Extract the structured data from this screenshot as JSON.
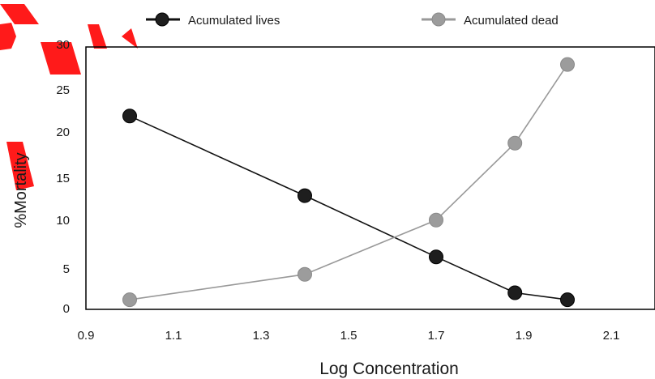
{
  "chart_data": {
    "type": "line",
    "title": "",
    "xlabel": "Log Concentration",
    "ylabel": "%Mortality",
    "xlim": [
      0.9,
      2.2
    ],
    "ylim": [
      0,
      30
    ],
    "xticks": [
      "0.9",
      "1.1",
      "1.3",
      "1.5",
      "1.7",
      "1.9",
      "2.1"
    ],
    "yticks": [
      "0",
      "5",
      "10",
      "15",
      "20",
      "25",
      "30"
    ],
    "grid": false,
    "legend_position": "top",
    "series": [
      {
        "name": "Acumulated lives",
        "color": "#111111",
        "marker_fill": "#1e1e1e",
        "points": [
          {
            "x": 1.0,
            "y": 22.1
          },
          {
            "x": 1.4,
            "y": 13.0
          },
          {
            "x": 1.7,
            "y": 6.0
          },
          {
            "x": 1.88,
            "y": 1.9
          },
          {
            "x": 2.0,
            "y": 1.1
          }
        ]
      },
      {
        "name": "Acumulated dead",
        "color": "#999999",
        "marker_fill": "#9c9c9c",
        "points": [
          {
            "x": 1.0,
            "y": 1.1
          },
          {
            "x": 1.4,
            "y": 4.0
          },
          {
            "x": 1.7,
            "y": 10.2
          },
          {
            "x": 1.88,
            "y": 19.0
          },
          {
            "x": 2.0,
            "y": 28.0
          }
        ]
      }
    ]
  },
  "watermark": {
    "color": "#ff1a1a",
    "icon": "red-watermark-mark"
  }
}
